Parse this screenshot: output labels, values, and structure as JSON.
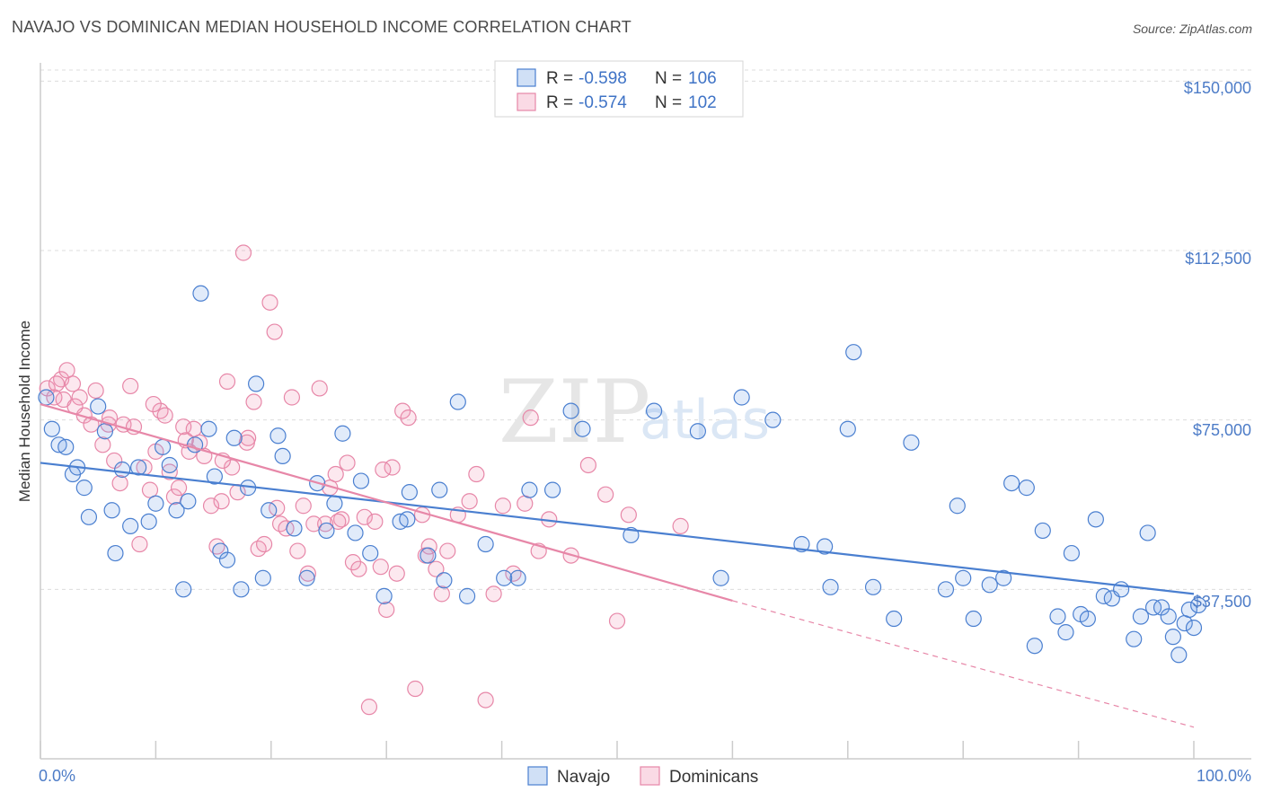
{
  "chart_data": {
    "type": "scatter",
    "title": "NAVAJO VS DOMINICAN MEDIAN HOUSEHOLD INCOME CORRELATION CHART",
    "source": "Source: ZipAtlas.com",
    "ylabel": "Median Household Income",
    "xlabel": "",
    "xlim": [
      0,
      100
    ],
    "ylim": [
      0,
      160000
    ],
    "x_tick_labels": [
      "0.0%",
      "100.0%"
    ],
    "y_ticks": [
      37500,
      75000,
      112500,
      150000
    ],
    "y_tick_labels": [
      "$37,500",
      "$75,000",
      "$112,500",
      "$150,000"
    ],
    "watermark": {
      "part1": "ZIP",
      "part2": "atlas"
    },
    "legend": {
      "rows": [
        {
          "r_label": "R =",
          "r_value": "-0.598",
          "n_label": "N =",
          "n_value": "106",
          "color": "#4a7fd0"
        },
        {
          "r_label": "R =",
          "r_value": "-0.574",
          "n_label": "N =",
          "n_value": "102",
          "color": "#e787a8"
        }
      ]
    },
    "series": [
      {
        "name": "Navajo",
        "color": "#4a7fd0",
        "trend": {
          "x0": 0,
          "y0": 65500,
          "x1": 100,
          "y1": 36500
        },
        "points": [
          [
            0.5,
            80000
          ],
          [
            1.0,
            73000
          ],
          [
            1.6,
            69500
          ],
          [
            2.2,
            69000
          ],
          [
            2.8,
            63000
          ],
          [
            3.2,
            64500
          ],
          [
            3.8,
            60000
          ],
          [
            4.2,
            53500
          ],
          [
            5.0,
            78000
          ],
          [
            5.6,
            72500
          ],
          [
            6.2,
            55000
          ],
          [
            6.5,
            45500
          ],
          [
            7.1,
            64000
          ],
          [
            7.8,
            51500
          ],
          [
            8.5,
            64500
          ],
          [
            9.4,
            52500
          ],
          [
            10.0,
            56500
          ],
          [
            10.6,
            69000
          ],
          [
            11.2,
            65000
          ],
          [
            11.8,
            55000
          ],
          [
            12.4,
            37500
          ],
          [
            12.8,
            57000
          ],
          [
            13.4,
            69500
          ],
          [
            13.9,
            103000
          ],
          [
            14.6,
            73000
          ],
          [
            15.1,
            62500
          ],
          [
            15.6,
            46000
          ],
          [
            16.2,
            44000
          ],
          [
            16.8,
            71000
          ],
          [
            17.4,
            37500
          ],
          [
            18.0,
            60000
          ],
          [
            18.7,
            83000
          ],
          [
            19.3,
            40000
          ],
          [
            19.8,
            55000
          ],
          [
            20.6,
            71500
          ],
          [
            21.0,
            67000
          ],
          [
            22.0,
            51000
          ],
          [
            23.1,
            40000
          ],
          [
            24.0,
            61000
          ],
          [
            24.8,
            50500
          ],
          [
            25.5,
            56500
          ],
          [
            26.2,
            72000
          ],
          [
            27.3,
            50000
          ],
          [
            27.8,
            61500
          ],
          [
            28.6,
            45500
          ],
          [
            29.8,
            36000
          ],
          [
            31.2,
            52500
          ],
          [
            31.8,
            53000
          ],
          [
            32.0,
            59000
          ],
          [
            33.6,
            45000
          ],
          [
            34.6,
            59500
          ],
          [
            35.0,
            39500
          ],
          [
            36.2,
            79000
          ],
          [
            37.0,
            36000
          ],
          [
            38.6,
            47500
          ],
          [
            40.2,
            40000
          ],
          [
            41.4,
            40000
          ],
          [
            42.4,
            59500
          ],
          [
            44.4,
            59500
          ],
          [
            46.0,
            77000
          ],
          [
            47.0,
            73000
          ],
          [
            51.2,
            49500
          ],
          [
            53.2,
            77000
          ],
          [
            57.0,
            72500
          ],
          [
            59.0,
            40000
          ],
          [
            60.8,
            80000
          ],
          [
            63.5,
            75000
          ],
          [
            66.0,
            47500
          ],
          [
            68.0,
            47000
          ],
          [
            68.5,
            38000
          ],
          [
            70.0,
            73000
          ],
          [
            70.5,
            90000
          ],
          [
            72.2,
            38000
          ],
          [
            74.0,
            31000
          ],
          [
            75.5,
            70000
          ],
          [
            78.5,
            37500
          ],
          [
            79.5,
            56000
          ],
          [
            80.0,
            40000
          ],
          [
            80.9,
            31000
          ],
          [
            82.3,
            38500
          ],
          [
            83.5,
            40000
          ],
          [
            84.2,
            61000
          ],
          [
            85.5,
            60000
          ],
          [
            86.2,
            25000
          ],
          [
            86.9,
            50500
          ],
          [
            88.2,
            31500
          ],
          [
            88.9,
            28000
          ],
          [
            89.4,
            45500
          ],
          [
            90.2,
            32000
          ],
          [
            90.8,
            31000
          ],
          [
            91.5,
            53000
          ],
          [
            92.2,
            36000
          ],
          [
            92.9,
            35500
          ],
          [
            93.7,
            37500
          ],
          [
            94.8,
            26500
          ],
          [
            95.4,
            31500
          ],
          [
            96.0,
            50000
          ],
          [
            96.5,
            33500
          ],
          [
            97.2,
            33500
          ],
          [
            97.8,
            31500
          ],
          [
            98.2,
            27000
          ],
          [
            98.7,
            23000
          ],
          [
            99.2,
            30000
          ],
          [
            99.6,
            33000
          ],
          [
            100.0,
            29000
          ],
          [
            100.4,
            34000
          ]
        ]
      },
      {
        "name": "Dominicans",
        "color": "#e787a8",
        "trend": {
          "x0": 0,
          "y0": 78500,
          "x1": 60,
          "y1": 35000,
          "dash_to_x": 100,
          "dash_to_y": 7000
        },
        "points": [
          [
            0.6,
            82000
          ],
          [
            1.2,
            80000
          ],
          [
            1.8,
            84000
          ],
          [
            2.3,
            86000
          ],
          [
            2.8,
            83000
          ],
          [
            3.4,
            80000
          ],
          [
            3.8,
            76000
          ],
          [
            4.4,
            74000
          ],
          [
            4.8,
            81500
          ],
          [
            5.4,
            69500
          ],
          [
            5.9,
            74000
          ],
          [
            6.4,
            66000
          ],
          [
            6.9,
            61000
          ],
          [
            7.2,
            74000
          ],
          [
            7.8,
            82500
          ],
          [
            8.1,
            73500
          ],
          [
            8.6,
            47500
          ],
          [
            9.0,
            64500
          ],
          [
            9.5,
            59500
          ],
          [
            10.0,
            68000
          ],
          [
            10.4,
            77000
          ],
          [
            10.8,
            76000
          ],
          [
            11.2,
            63500
          ],
          [
            11.6,
            58000
          ],
          [
            12.0,
            60000
          ],
          [
            12.4,
            73500
          ],
          [
            12.9,
            68000
          ],
          [
            13.3,
            73000
          ],
          [
            13.8,
            70000
          ],
          [
            14.2,
            67000
          ],
          [
            14.8,
            56000
          ],
          [
            15.3,
            47000
          ],
          [
            15.7,
            57000
          ],
          [
            16.2,
            83500
          ],
          [
            16.6,
            64500
          ],
          [
            17.1,
            59000
          ],
          [
            17.6,
            112000
          ],
          [
            18.0,
            71000
          ],
          [
            18.5,
            79000
          ],
          [
            18.9,
            46500
          ],
          [
            19.4,
            47500
          ],
          [
            19.9,
            101000
          ],
          [
            20.3,
            94500
          ],
          [
            20.8,
            52000
          ],
          [
            21.3,
            51000
          ],
          [
            21.8,
            80000
          ],
          [
            22.3,
            46000
          ],
          [
            22.8,
            56000
          ],
          [
            23.2,
            41000
          ],
          [
            23.7,
            52000
          ],
          [
            24.2,
            82000
          ],
          [
            24.7,
            52000
          ],
          [
            25.1,
            60000
          ],
          [
            25.6,
            63000
          ],
          [
            26.1,
            53000
          ],
          [
            26.6,
            65500
          ],
          [
            27.1,
            43500
          ],
          [
            27.6,
            42000
          ],
          [
            28.1,
            53500
          ],
          [
            28.5,
            11500
          ],
          [
            29.0,
            52500
          ],
          [
            29.5,
            42500
          ],
          [
            30.0,
            33000
          ],
          [
            30.5,
            64500
          ],
          [
            30.9,
            41000
          ],
          [
            31.4,
            77000
          ],
          [
            31.9,
            75500
          ],
          [
            32.5,
            15500
          ],
          [
            33.1,
            54000
          ],
          [
            33.7,
            47000
          ],
          [
            34.3,
            42000
          ],
          [
            34.8,
            36500
          ],
          [
            35.3,
            46000
          ],
          [
            36.2,
            54000
          ],
          [
            37.2,
            57000
          ],
          [
            37.8,
            63000
          ],
          [
            38.6,
            13000
          ],
          [
            39.3,
            36500
          ],
          [
            40.1,
            56000
          ],
          [
            41.0,
            41000
          ],
          [
            42.0,
            56500
          ],
          [
            42.5,
            75500
          ],
          [
            43.2,
            46000
          ],
          [
            44.1,
            53000
          ],
          [
            46.0,
            45000
          ],
          [
            47.5,
            65000
          ],
          [
            49.0,
            58500
          ],
          [
            50.0,
            30500
          ],
          [
            51.0,
            54000
          ],
          [
            55.5,
            51500
          ],
          [
            1.4,
            83000
          ],
          [
            2.0,
            79500
          ],
          [
            3.0,
            78000
          ],
          [
            6.0,
            75500
          ],
          [
            9.8,
            78500
          ],
          [
            12.6,
            70500
          ],
          [
            15.8,
            66000
          ],
          [
            17.9,
            70000
          ],
          [
            20.5,
            55500
          ],
          [
            25.8,
            52500
          ],
          [
            29.7,
            64000
          ],
          [
            33.4,
            45000
          ]
        ]
      }
    ],
    "bottom_legend": [
      "Navajo",
      "Dominicans"
    ]
  }
}
